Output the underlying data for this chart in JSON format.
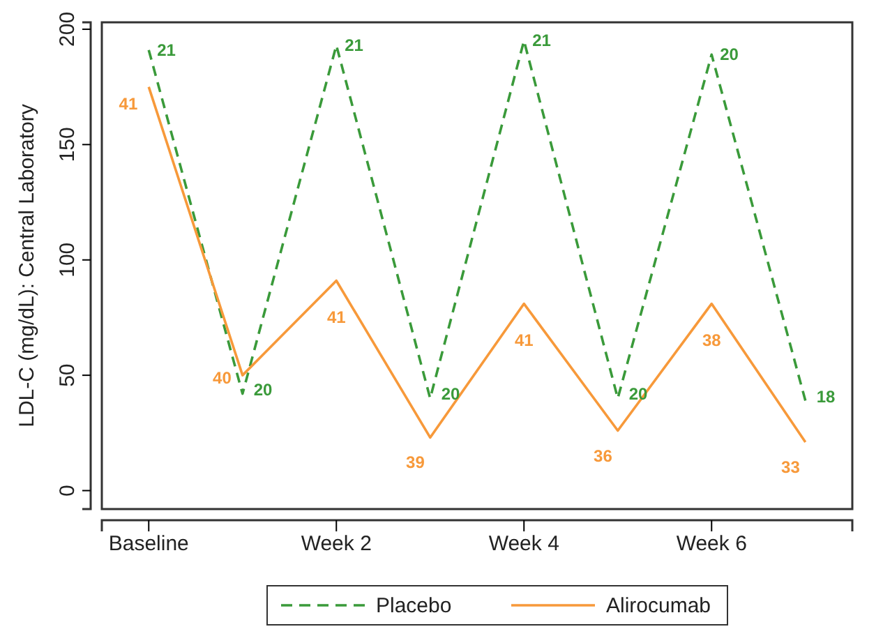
{
  "chart_data": {
    "type": "line",
    "ylabel": "LDL-C (mg/dL): Central Laboratory",
    "categories": [
      "Baseline",
      null,
      "Week 2",
      null,
      "Week 4",
      null,
      "Week 6",
      null
    ],
    "ylim": [
      -8,
      203
    ],
    "yticks": [
      0,
      50,
      100,
      150,
      200
    ],
    "legend": "bottom",
    "line_style": "solid",
    "series": [
      {
        "name": "Placebo",
        "color": "#3a9a3a",
        "line_style": "dashed",
        "values": [
          191,
          42,
          193,
          40,
          195,
          40,
          189,
          39
        ]
      },
      {
        "name": "Alirocumab",
        "color": "#f7993a",
        "values": [
          175,
          50,
          91,
          23,
          81,
          26,
          81,
          21
        ]
      }
    ],
    "annotations": [
      {
        "text": "21",
        "x": "Baseline",
        "y": 191
      },
      "20",
      {
        "text": "21",
        "x": "Week 2",
        "y": 193
      },
      "20",
      {
        "text": "21",
        "x": "Week 4",
        "y": 195
      },
      "20",
      {
        "text": "20",
        "x": "Week 6",
        "y": 189
      },
      "18",
      {
        "text": "41",
        "x": "Baseline",
        "y": 175
      },
      "40",
      {
        "text": "41",
        "x": "Week 2",
        "y": 91
      },
      "39",
      {
        "text": "41",
        "x": "Week 4",
        "y": 81
      },
      "36",
      {
        "text": "38",
        "x": "Week 6",
        "y": 81
      },
      "33"
    ]
  }
}
